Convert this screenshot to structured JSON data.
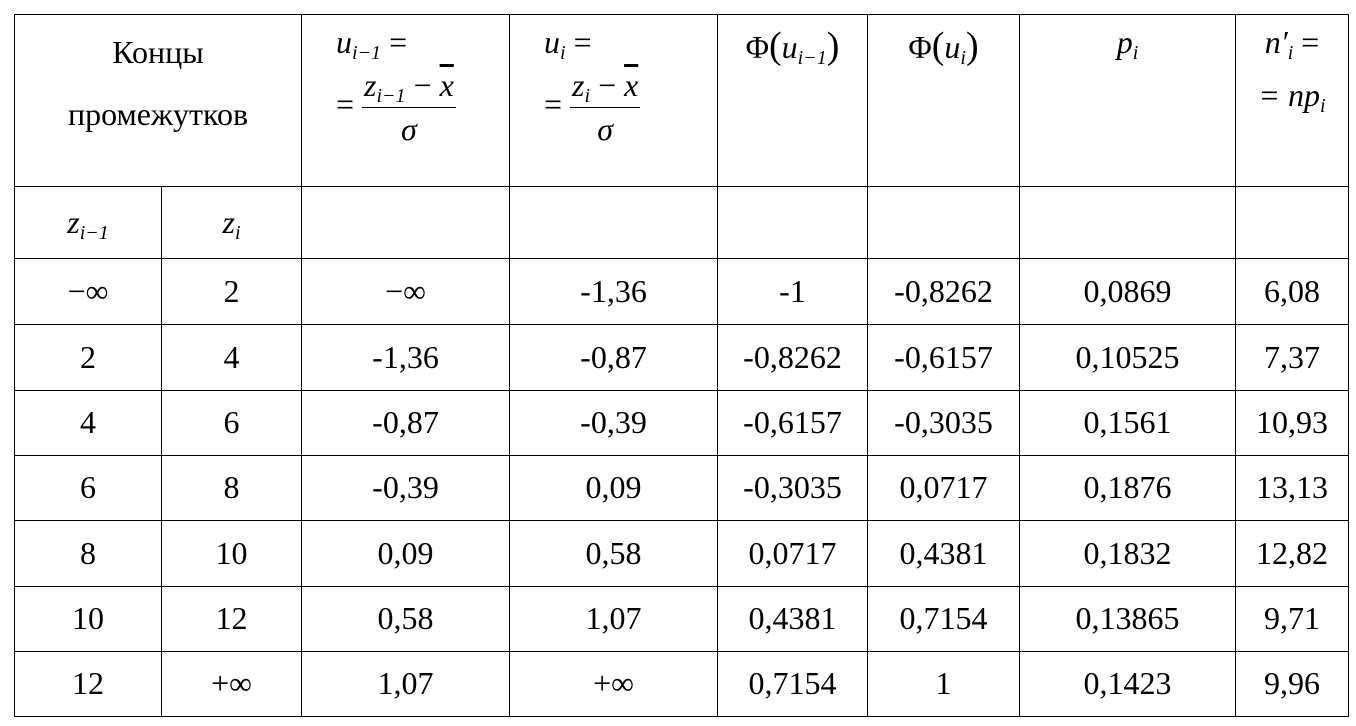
{
  "table": {
    "header": {
      "intervals": "Концы промежутков",
      "u_prev": {
        "symbol": "u",
        "index": "i−1",
        "eq": "=",
        "lead": "=",
        "num_symbol": "z",
        "num_index": "i−1",
        "minus": "−",
        "mean": "x",
        "den": "σ"
      },
      "u_cur": {
        "symbol": "u",
        "index": "i",
        "eq": "=",
        "lead": "=",
        "num_symbol": "z",
        "num_index": "i",
        "minus": "−",
        "mean": "x",
        "den": "σ"
      },
      "phi_prev": {
        "func": "Φ",
        "open": "(",
        "symbol": "u",
        "index": "i−1",
        "close": ")"
      },
      "phi_cur": {
        "func": "Φ",
        "open": "(",
        "symbol": "u",
        "index": "i",
        "close": ")"
      },
      "p": {
        "symbol": "p",
        "index": "i"
      },
      "n": {
        "symbol": "n′",
        "index": "i",
        "eq": "=",
        "lead": "= np",
        "index2": "i"
      }
    },
    "subheader": {
      "z_prev": {
        "symbol": "z",
        "index": "i−1"
      },
      "z_cur": {
        "symbol": "z",
        "index": "i"
      }
    },
    "rows": [
      [
        "−∞",
        "2",
        "−∞",
        "-1,36",
        "-1",
        "-0,8262",
        "0,0869",
        "6,08"
      ],
      [
        "2",
        "4",
        "-1,36",
        "-0,87",
        "-0,8262",
        "-0,6157",
        "0,10525",
        "7,37"
      ],
      [
        "4",
        "6",
        "-0,87",
        "-0,39",
        "-0,6157",
        "-0,3035",
        "0,1561",
        "10,93"
      ],
      [
        "6",
        "8",
        "-0,39",
        "0,09",
        "-0,3035",
        "0,0717",
        "0,1876",
        "13,13"
      ],
      [
        "8",
        "10",
        "0,09",
        "0,58",
        "0,0717",
        "0,4381",
        "0,1832",
        "12,82"
      ],
      [
        "10",
        "12",
        "0,58",
        "1,07",
        "0,4381",
        "0,7154",
        "0,13865",
        "9,71"
      ],
      [
        "12",
        "+∞",
        "1,07",
        "+∞",
        "0,7154",
        "1",
        "0,1423",
        "9,96"
      ]
    ]
  }
}
